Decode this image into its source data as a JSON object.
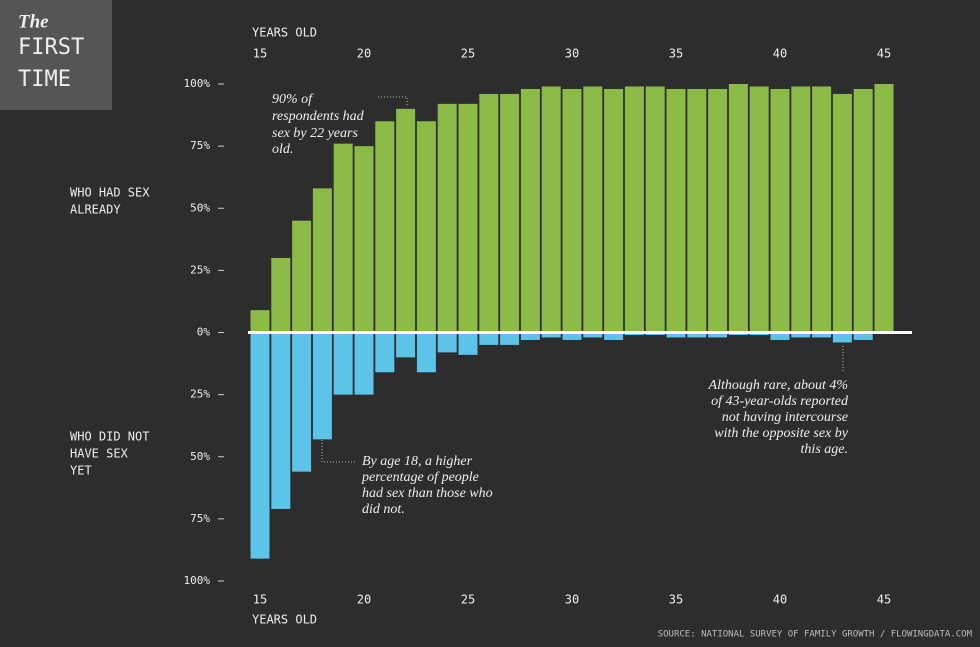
{
  "chart_data": {
    "type": "bar",
    "title": [
      "The",
      "FIRST",
      "TIME"
    ],
    "x_label": "YEARS OLD",
    "group_labels": [
      [
        "WHO HAD SEX",
        "ALREADY"
      ],
      [
        "WHO DID NOT",
        "HAVE SEX",
        "YET"
      ]
    ],
    "annotations": [
      [
        "90% of",
        "respondents had",
        "sex by 22 years",
        "old."
      ],
      [
        "By age 18, a higher",
        "percentage of people",
        "had sex than those who",
        "did not."
      ],
      [
        "Although rare, about 4%",
        "of 43-year-olds reported",
        "not having intercourse",
        "with the opposite sex by",
        "this age."
      ]
    ],
    "source": "SOURCE: NATIONAL SURVEY OF FAMILY GROWTH / FLOWINGDATA.COM",
    "x": [
      15,
      16,
      17,
      18,
      19,
      20,
      21,
      22,
      23,
      24,
      25,
      26,
      27,
      28,
      29,
      30,
      31,
      32,
      33,
      34,
      35,
      36,
      37,
      38,
      39,
      40,
      41,
      42,
      43,
      44,
      45
    ],
    "series": [
      {
        "color": "#8cba47",
        "values": [
          9,
          30,
          45,
          58,
          76,
          75,
          85,
          90,
          85,
          92,
          92,
          96,
          96,
          98,
          99,
          98,
          99,
          98,
          99,
          99,
          98,
          98,
          98,
          100,
          99,
          98,
          99,
          99,
          96,
          98,
          100
        ]
      },
      {
        "color": "#5bc4e8",
        "values": [
          -91,
          -71,
          -56,
          -43,
          -25,
          -25,
          -16,
          -10,
          -16,
          -8,
          -9,
          -5,
          -5,
          -3,
          -2,
          -3,
          -2,
          -3,
          -1,
          -1,
          -2,
          -2,
          -2,
          -1,
          -1,
          -3,
          -2,
          -2,
          -4,
          -3,
          0
        ]
      }
    ],
    "xlim": [
      14.5,
      45.5
    ],
    "xticks": [
      15,
      20,
      25,
      30,
      35,
      40,
      45
    ],
    "ylim": [
      -100,
      100
    ],
    "yticks": [
      {
        "value": -100,
        "label": "100%"
      },
      {
        "value": -75,
        "label": "75%"
      },
      {
        "value": -50,
        "label": "50%"
      },
      {
        "value": -25,
        "label": "25%"
      },
      {
        "value": 0,
        "label": "0%"
      },
      {
        "value": 25,
        "label": "25%"
      },
      {
        "value": 50,
        "label": "50%"
      },
      {
        "value": 75,
        "label": "75%"
      },
      {
        "value": 100,
        "label": "100%"
      }
    ]
  }
}
